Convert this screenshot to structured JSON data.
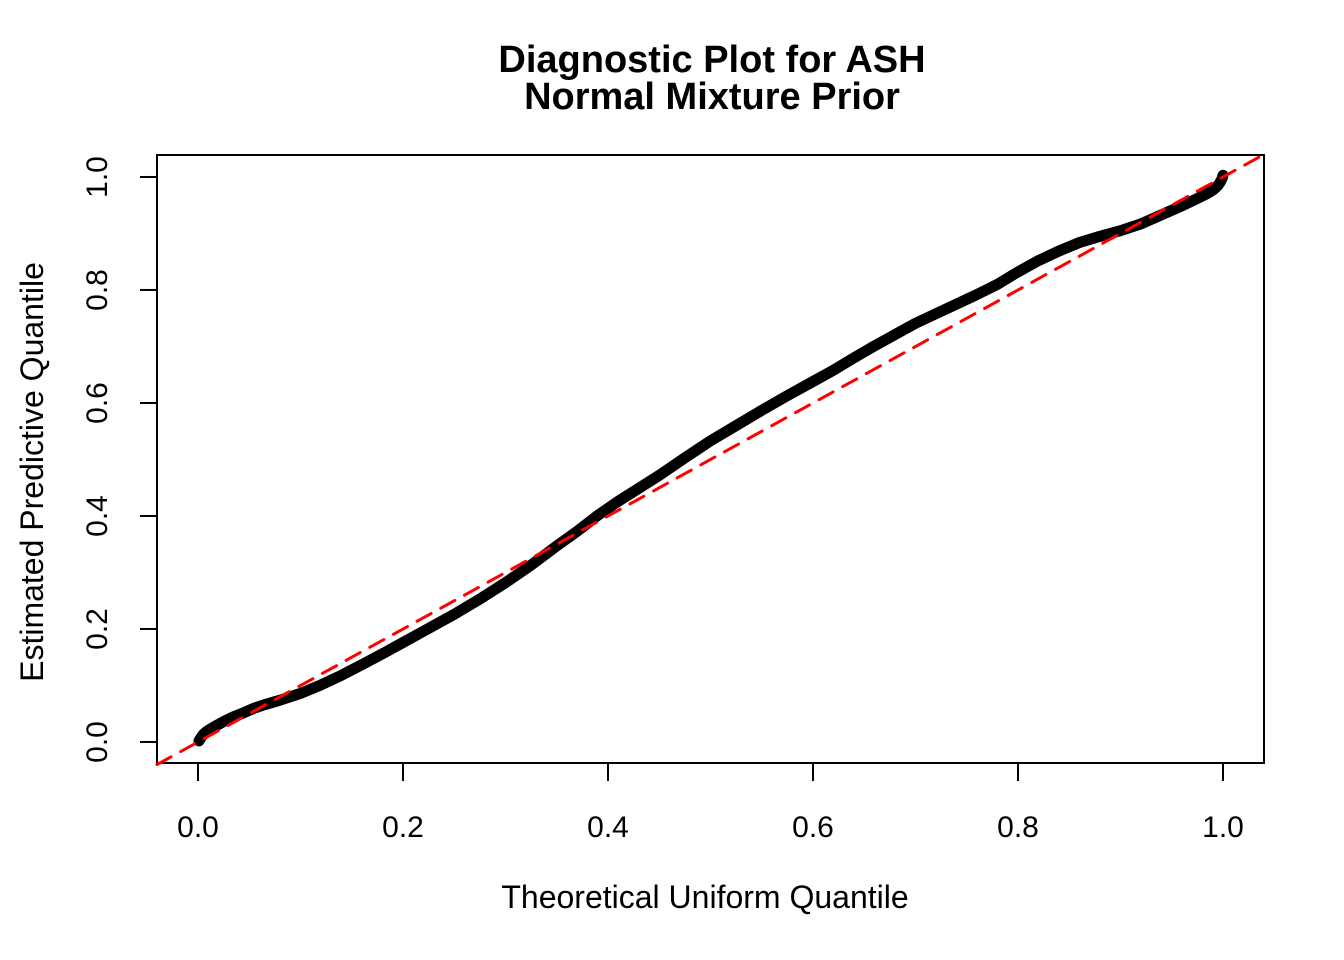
{
  "chart_data": {
    "type": "line",
    "title_lines": [
      "Diagnostic Plot for ASH",
      "Normal Mixture Prior"
    ],
    "xlabel": "Theoretical Uniform Quantile",
    "ylabel": "Estimated Predictive Quantile",
    "xlim": [
      -0.04,
      1.04
    ],
    "ylim": [
      -0.0372,
      1.0389
    ],
    "grid": false,
    "box": true,
    "background_color": "#ffffff",
    "axis_color": "#000000",
    "xticks": {
      "values": [
        0.0,
        0.2,
        0.4,
        0.6,
        0.8,
        1.0
      ],
      "labels": [
        "0.0",
        "0.2",
        "0.4",
        "0.6",
        "0.8",
        "1.0"
      ]
    },
    "yticks": {
      "values": [
        0.0,
        0.2,
        0.4,
        0.6,
        0.8,
        1.0
      ],
      "labels": [
        "0.0",
        "0.2",
        "0.4",
        "0.6",
        "0.8",
        "1.0"
      ]
    },
    "series": [
      {
        "name": "estimated-predictive-quantile-curve",
        "kind": "qq-point-curve",
        "color": "#000000",
        "stroke_width": 11,
        "dash": null,
        "points": [
          [
            0.001,
            0.002
          ],
          [
            0.003,
            0.008
          ],
          [
            0.005,
            0.013
          ],
          [
            0.008,
            0.018
          ],
          [
            0.012,
            0.023
          ],
          [
            0.018,
            0.029
          ],
          [
            0.025,
            0.036
          ],
          [
            0.035,
            0.045
          ],
          [
            0.045,
            0.052
          ],
          [
            0.055,
            0.06
          ],
          [
            0.065,
            0.066
          ],
          [
            0.08,
            0.074
          ],
          [
            0.1,
            0.086
          ],
          [
            0.12,
            0.101
          ],
          [
            0.14,
            0.118
          ],
          [
            0.16,
            0.137
          ],
          [
            0.18,
            0.156
          ],
          [
            0.2,
            0.176
          ],
          [
            0.225,
            0.201
          ],
          [
            0.25,
            0.226
          ],
          [
            0.275,
            0.253
          ],
          [
            0.3,
            0.282
          ],
          [
            0.325,
            0.313
          ],
          [
            0.35,
            0.347
          ],
          [
            0.37,
            0.373
          ],
          [
            0.39,
            0.401
          ],
          [
            0.41,
            0.426
          ],
          [
            0.43,
            0.449
          ],
          [
            0.45,
            0.472
          ],
          [
            0.475,
            0.503
          ],
          [
            0.5,
            0.533
          ],
          [
            0.525,
            0.56
          ],
          [
            0.55,
            0.587
          ],
          [
            0.575,
            0.613
          ],
          [
            0.6,
            0.638
          ],
          [
            0.62,
            0.658
          ],
          [
            0.64,
            0.68
          ],
          [
            0.66,
            0.701
          ],
          [
            0.68,
            0.721
          ],
          [
            0.7,
            0.741
          ],
          [
            0.72,
            0.758
          ],
          [
            0.74,
            0.775
          ],
          [
            0.76,
            0.792
          ],
          [
            0.78,
            0.81
          ],
          [
            0.8,
            0.832
          ],
          [
            0.82,
            0.852
          ],
          [
            0.84,
            0.869
          ],
          [
            0.86,
            0.884
          ],
          [
            0.88,
            0.895
          ],
          [
            0.9,
            0.905
          ],
          [
            0.92,
            0.917
          ],
          [
            0.94,
            0.933
          ],
          [
            0.96,
            0.949
          ],
          [
            0.975,
            0.962
          ],
          [
            0.985,
            0.971
          ],
          [
            0.991,
            0.978
          ],
          [
            0.995,
            0.985
          ],
          [
            0.997,
            0.99
          ],
          [
            0.999,
            0.997
          ],
          [
            1.0,
            1.003
          ]
        ]
      },
      {
        "name": "identity-reference-line",
        "kind": "dashed-line",
        "color": "#ff0000",
        "stroke_width": 3,
        "dash": [
          16,
          11
        ],
        "points": [
          [
            -0.04,
            -0.04
          ],
          [
            1.0389,
            1.0389
          ]
        ]
      }
    ]
  }
}
